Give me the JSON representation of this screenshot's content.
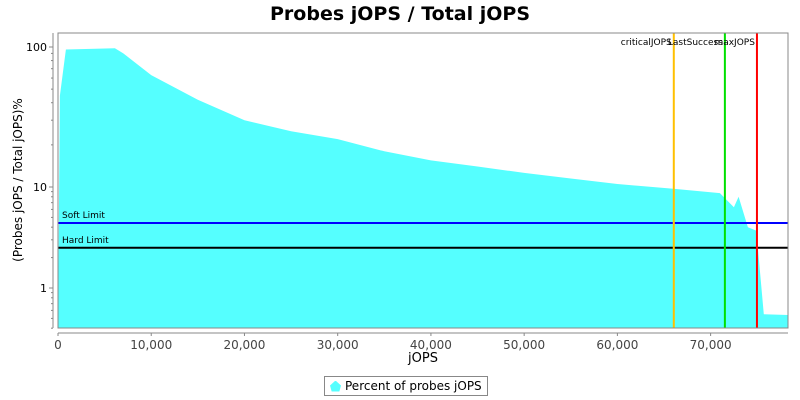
{
  "chart_data": {
    "type": "area",
    "title": "Probes jOPS / Total jOPS",
    "xlabel": "jOPS",
    "ylabel": "(Probes jOPS / Total jOPS)%",
    "xlim": [
      0,
      78300
    ],
    "ylim": [
      0.4,
      130
    ],
    "yscale": "log",
    "x_ticks": [
      0,
      10000,
      20000,
      30000,
      40000,
      50000,
      60000,
      70000
    ],
    "x_tick_labels": [
      "0",
      "10,000",
      "20,000",
      "30,000",
      "40,000",
      "50,000",
      "60,000",
      "70,000"
    ],
    "y_ticks": [
      1,
      10,
      100
    ],
    "y_tick_labels": [
      "1",
      "10",
      "100"
    ],
    "grid": false,
    "legend_position": "bottom",
    "series": [
      {
        "name": "Percent of probes jOPS",
        "color": "#55ffff",
        "x": [
          0,
          200,
          850,
          6100,
          7000,
          10000,
          15000,
          20000,
          25000,
          30000,
          35000,
          40000,
          45000,
          50000,
          55000,
          60000,
          66000,
          71000,
          72500,
          73000,
          74000,
          74900,
          75700,
          78300
        ],
        "y": [
          0.4,
          45,
          96,
          98,
          90,
          63,
          42,
          30,
          25,
          22,
          18,
          15.5,
          14,
          12.6,
          11.5,
          10.5,
          9.6,
          8.7,
          6.3,
          8.0,
          4.0,
          3.7,
          0.55,
          0.54
        ]
      }
    ],
    "horizontal_lines": [
      {
        "label": "Soft Limit",
        "value": 4.4,
        "color": "#0000ff"
      },
      {
        "label": "Hard Limit",
        "value": 2.5,
        "color": "#000000"
      }
    ],
    "vertical_lines": [
      {
        "label": "criticalJOPS",
        "value": 66050,
        "color": "#ffc000"
      },
      {
        "label": "LastSuccess",
        "value": 71530,
        "color": "#00e000"
      },
      {
        "label": "maxJOPS",
        "value": 74970,
        "color": "#ff0000"
      }
    ]
  }
}
